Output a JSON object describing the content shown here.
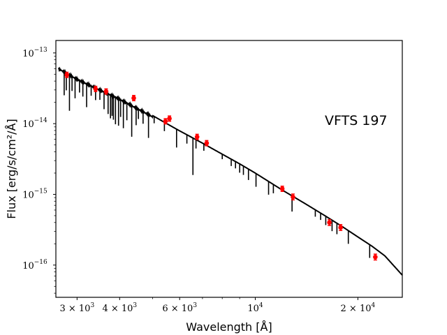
{
  "chart_data": {
    "type": "scatter",
    "title": "",
    "xlabel": "Wavelength [Å]",
    "ylabel": "Flux [erg/s/cm²/Å]",
    "x_scale": "log",
    "y_scale": "log",
    "xlim": [
      2600,
      27000
    ],
    "ylim": [
      3.5e-17,
      1.5e-13
    ],
    "grid": false,
    "legend": "none",
    "annotation": "VFTS 197",
    "x_ticks": [
      {
        "value": 3000,
        "mant": "3",
        "exp": "3"
      },
      {
        "value": 4000,
        "mant": "4",
        "exp": "3"
      },
      {
        "value": 6000,
        "mant": "6",
        "exp": "3"
      },
      {
        "value": 10000,
        "mant": "",
        "exp": "4"
      },
      {
        "value": 20000,
        "mant": "2",
        "exp": "4"
      }
    ],
    "y_ticks": [
      {
        "value": 1e-13,
        "exp": "−13"
      },
      {
        "value": 1e-14,
        "exp": "−14"
      },
      {
        "value": 1e-15,
        "exp": "−15"
      },
      {
        "value": 1e-16,
        "exp": "−16"
      }
    ],
    "model_spectrum": {
      "name": "",
      "color": "#000000",
      "x": [
        2650,
        3000,
        3500,
        4000,
        4500,
        5000,
        5500,
        6000,
        7000,
        8000,
        9000,
        10000,
        12000,
        14000,
        16000,
        18000,
        20000,
        22000,
        24000,
        27000
      ],
      "y": [
        6.2e-14,
        4.4e-14,
        3.1e-14,
        2.3e-14,
        1.7e-14,
        1.3e-14,
        1e-14,
        7.9e-15,
        5.3e-15,
        3.7e-15,
        2.7e-15,
        2e-15,
        1.15e-15,
        7.4e-16,
        5e-16,
        3.5e-16,
        2.5e-16,
        1.85e-16,
        1.35e-16,
        7.2e-17
      ],
      "absorption_lines": [
        {
          "x": 2750,
          "depth": 0.55
        },
        {
          "x": 2790,
          "depth": 0.45
        },
        {
          "x": 2850,
          "depth": 0.7
        },
        {
          "x": 2900,
          "depth": 0.4
        },
        {
          "x": 2960,
          "depth": 0.5
        },
        {
          "x": 3050,
          "depth": 0.35
        },
        {
          "x": 3120,
          "depth": 0.4
        },
        {
          "x": 3200,
          "depth": 0.55
        },
        {
          "x": 3300,
          "depth": 0.3
        },
        {
          "x": 3400,
          "depth": 0.35
        },
        {
          "x": 3500,
          "depth": 0.3
        },
        {
          "x": 3600,
          "depth": 0.45
        },
        {
          "x": 3700,
          "depth": 0.5
        },
        {
          "x": 3760,
          "depth": 0.55
        },
        {
          "x": 3800,
          "depth": 0.5
        },
        {
          "x": 3835,
          "depth": 0.55
        },
        {
          "x": 3889,
          "depth": 0.6
        },
        {
          "x": 3970,
          "depth": 0.6
        },
        {
          "x": 4026,
          "depth": 0.45
        },
        {
          "x": 4102,
          "depth": 0.6
        },
        {
          "x": 4200,
          "depth": 0.45
        },
        {
          "x": 4340,
          "depth": 0.65
        },
        {
          "x": 4471,
          "depth": 0.45
        },
        {
          "x": 4541,
          "depth": 0.3
        },
        {
          "x": 4686,
          "depth": 0.35
        },
        {
          "x": 4861,
          "depth": 0.55
        },
        {
          "x": 5050,
          "depth": 0.2
        },
        {
          "x": 5412,
          "depth": 0.25
        },
        {
          "x": 5876,
          "depth": 0.45
        },
        {
          "x": 6300,
          "depth": 0.25
        },
        {
          "x": 6563,
          "depth": 0.7
        },
        {
          "x": 6700,
          "depth": 0.25
        },
        {
          "x": 7065,
          "depth": 0.2
        },
        {
          "x": 8000,
          "depth": 0.15
        },
        {
          "x": 8500,
          "depth": 0.2
        },
        {
          "x": 8750,
          "depth": 0.2
        },
        {
          "x": 9000,
          "depth": 0.25
        },
        {
          "x": 9230,
          "depth": 0.25
        },
        {
          "x": 9550,
          "depth": 0.3
        },
        {
          "x": 10050,
          "depth": 0.35
        },
        {
          "x": 10940,
          "depth": 0.35
        },
        {
          "x": 11300,
          "depth": 0.25
        },
        {
          "x": 12820,
          "depth": 0.4
        },
        {
          "x": 15000,
          "depth": 0.2
        },
        {
          "x": 15550,
          "depth": 0.2
        },
        {
          "x": 16100,
          "depth": 0.25
        },
        {
          "x": 16800,
          "depth": 0.3
        },
        {
          "x": 17360,
          "depth": 0.3
        },
        {
          "x": 18750,
          "depth": 0.35
        },
        {
          "x": 21660,
          "depth": 0.35
        }
      ]
    },
    "photometry": {
      "name": "",
      "color": "#ff0000",
      "points": [
        {
          "x": 2800,
          "y": 4.9e-14,
          "err": 0.04
        },
        {
          "x": 3400,
          "y": 3.1e-14,
          "err": 0.04
        },
        {
          "x": 3650,
          "y": 2.85e-14,
          "err": 0.04
        },
        {
          "x": 4400,
          "y": 2.3e-14,
          "err": 0.04
        },
        {
          "x": 5450,
          "y": 1.08e-14,
          "err": 0.04
        },
        {
          "x": 5600,
          "y": 1.18e-14,
          "err": 0.04
        },
        {
          "x": 6750,
          "y": 6.5e-15,
          "err": 0.04
        },
        {
          "x": 7200,
          "y": 5.3e-15,
          "err": 0.04
        },
        {
          "x": 12000,
          "y": 1.2e-15,
          "err": 0.04
        },
        {
          "x": 12900,
          "y": 9.2e-16,
          "err": 0.05
        },
        {
          "x": 16500,
          "y": 4e-16,
          "err": 0.05
        },
        {
          "x": 17800,
          "y": 3.4e-16,
          "err": 0.05
        },
        {
          "x": 22500,
          "y": 1.3e-16,
          "err": 0.05
        }
      ]
    }
  }
}
